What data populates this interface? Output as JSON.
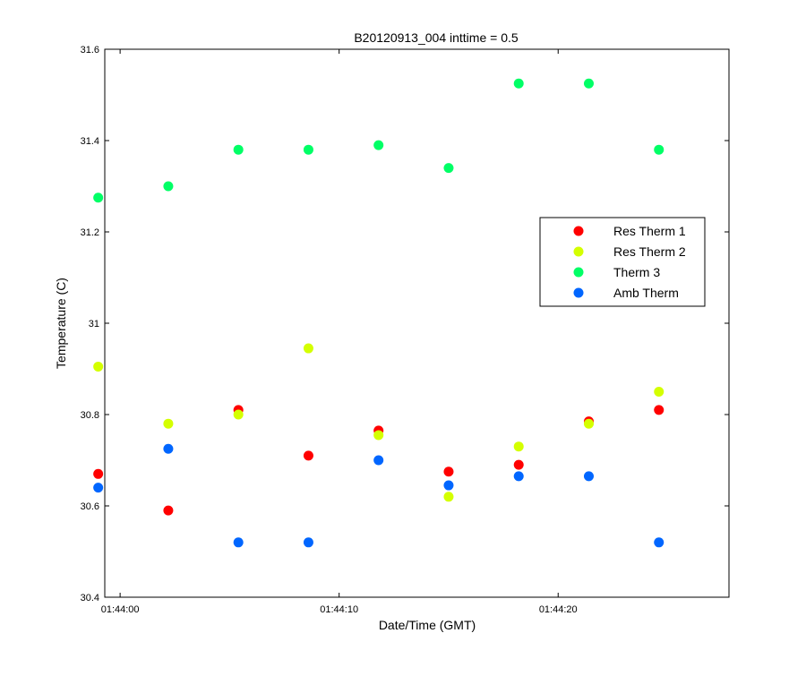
{
  "chart_data": {
    "type": "scatter",
    "title": "B20120913_004 inttime = 0.5",
    "xlabel": "Date/Time (GMT)",
    "ylabel": "Temperature (C)",
    "x_unit": "seconds after 01:44:00",
    "xlim": [
      -0.7,
      27.8
    ],
    "ylim": [
      30.4,
      31.6
    ],
    "yticks": [
      30.4,
      30.6,
      30.8,
      31,
      31.2,
      31.4,
      31.6
    ],
    "ytick_labels": [
      "30.4",
      "30.6",
      "30.8",
      "31",
      "31.2",
      "31.4",
      "31.6"
    ],
    "xticks": [
      0,
      10,
      20
    ],
    "xtick_labels": [
      "01:44:00",
      "01:44:10",
      "01:44:20"
    ],
    "x": [
      -1.0,
      2.2,
      5.4,
      8.6,
      11.8,
      15.0,
      18.2,
      21.4,
      24.6
    ],
    "series": [
      {
        "name": "Res Therm 1",
        "color": "#ff0000",
        "values": [
          30.67,
          30.59,
          30.81,
          30.71,
          30.765,
          30.675,
          30.69,
          30.785,
          30.81
        ]
      },
      {
        "name": "Res Therm 2",
        "color": "#d4ff00",
        "values": [
          30.905,
          30.78,
          30.8,
          30.945,
          30.755,
          30.62,
          30.73,
          30.78,
          30.85
        ]
      },
      {
        "name": "Therm 3",
        "color": "#00ff66",
        "values": [
          31.275,
          31.3,
          31.38,
          31.38,
          31.39,
          31.34,
          31.525,
          31.525,
          31.38
        ]
      },
      {
        "name": "Amb Therm",
        "color": "#0066ff",
        "values": [
          30.64,
          30.725,
          30.52,
          30.52,
          30.7,
          30.645,
          30.665,
          30.665,
          30.52
        ]
      }
    ],
    "legend_position": "right, upper-middle",
    "grid": false
  }
}
